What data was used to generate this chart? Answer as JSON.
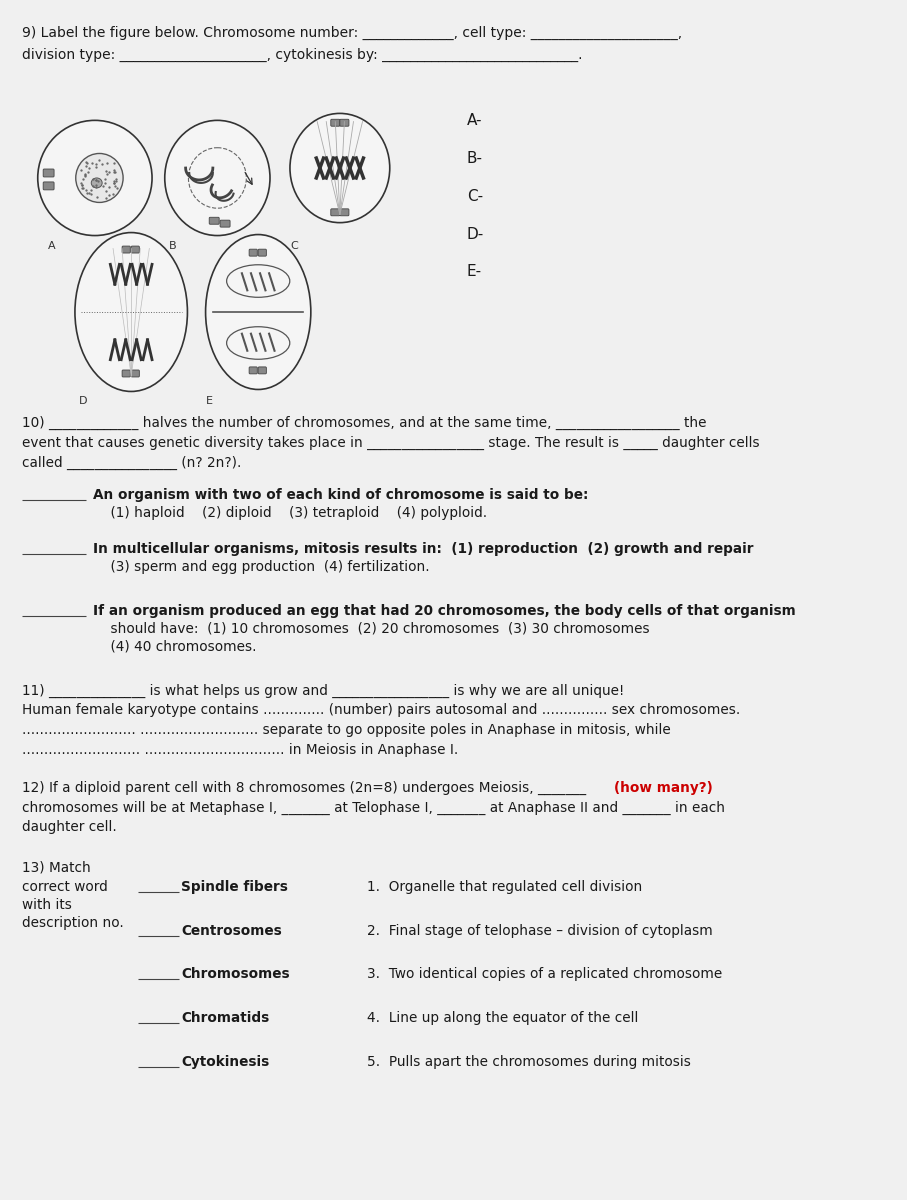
{
  "bg_color": "#f0f0f0",
  "page_bg": "#f0f0f0",
  "text_color": "#1a1a1a",
  "title_q9": "9) Label the figure below. Chromosome number: _____________, cell type: _____________________,",
  "line2_q9": "division type: _____________________, cytokinesis by: ____________________________.",
  "labels_ABCDE": [
    "A-",
    "B-",
    "C-",
    "D-",
    "E-"
  ],
  "q10_line1": "10) _____________ halves the number of chromosomes, and at the same time, __________________ the",
  "q10_line2": "event that causes genetic diversity takes place in _________________ stage. The result is _____ daughter cells",
  "q10_line3": "called ________________ (n? 2n?).",
  "q10_mc1": "An organism with two of each kind of chromosome is said to be:",
  "q10_mc1b": "    (1) haploid    (2) diploid    (3) tetraploid    (4) polyploid.",
  "q10_mc2": "In multicellular organisms, mitosis results in:  (1) reproduction  (2) growth and repair",
  "q10_mc2b": "    (3) sperm and egg production  (4) fertilization.",
  "q10_mc3": "If an organism produced an egg that had 20 chromosomes, the body cells of that organism",
  "q10_mc3b": "    should have:  (1) 10 chromosomes  (2) 20 chromosomes  (3) 30 chromosomes",
  "q10_mc3c": "    (4) 40 chromosomes.",
  "q11_line1": "11) ______________ is what helps us grow and _________________ is why we are all unique!",
  "q11_line2": "Human female karyotype contains .............. (number) pairs autosomal and ............... sex chromosomes.",
  "q11_line3": ".......................... ........................... separate to go opposite poles in Anaphase in mitosis, while",
  "q11_line4": "........................... ................................ in Meiosis in Anaphase I.",
  "q12_line1a": "12) If a diploid parent cell with 8 chromosomes (2n=8) undergoes Meiosis, _______",
  "q12_line1b": "(how many?)",
  "q12_line2": "chromosomes will be at Metaphase I, _______ at Telophase I, _______ at Anaphase II and _______ in each",
  "q12_line3": "daughter cell.",
  "q12_howmany_color": "#cc0000",
  "q13_header1": "13) Match",
  "q13_header2": "correct word",
  "q13_header3": "with its",
  "q13_header4": "description no.",
  "q13_items": [
    {
      "term": "Spindle fibers",
      "desc": "1.  Organelle that regulated cell division"
    },
    {
      "term": "Centrosomes",
      "desc": "2.  Final stage of telophase – division of cytoplasm"
    },
    {
      "term": "Chromosomes",
      "desc": "3.  Two identical copies of a replicated chromosome"
    },
    {
      "term": "Chromatids",
      "desc": "4.  Line up along the equator of the cell"
    },
    {
      "term": "Cytokinesis",
      "desc": "5.  Pulls apart the chromosomes during mitosis"
    }
  ]
}
